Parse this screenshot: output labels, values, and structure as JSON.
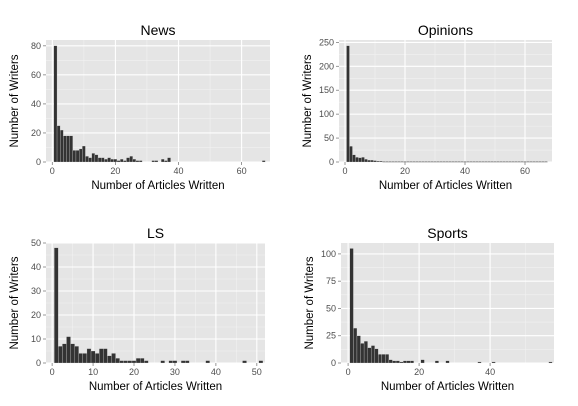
{
  "chart_data": [
    {
      "type": "bar",
      "title": "News",
      "xlabel": "Number of Articles Written",
      "ylabel": "Number of Writers",
      "xlim": [
        -2,
        69
      ],
      "ylim": [
        0,
        84
      ],
      "xticks": [
        0,
        20,
        40,
        60
      ],
      "yticks": [
        0,
        20,
        40,
        60,
        80
      ],
      "grid": true,
      "bin_width": 1,
      "x": [
        1,
        2,
        3,
        4,
        5,
        6,
        7,
        8,
        9,
        10,
        11,
        12,
        13,
        14,
        15,
        16,
        17,
        18,
        19,
        20,
        21,
        22,
        23,
        24,
        25,
        26,
        27,
        28,
        29,
        30,
        31,
        32,
        33,
        34,
        35,
        36,
        37,
        38,
        39,
        40,
        41,
        42,
        43,
        44,
        45,
        46,
        47,
        48,
        49,
        50,
        51,
        52,
        53,
        54,
        55,
        56,
        57,
        58,
        59,
        60,
        61,
        62,
        63,
        64,
        65,
        66,
        67
      ],
      "values": [
        80,
        25,
        22,
        18,
        18,
        18,
        8,
        8,
        9,
        11,
        4,
        3,
        6,
        5,
        3,
        3,
        2,
        3,
        2,
        2,
        1,
        2,
        1,
        3,
        4,
        2,
        1,
        1,
        0,
        0,
        0,
        1,
        1,
        0,
        2,
        1,
        3,
        0,
        0,
        0,
        0,
        0,
        0,
        0,
        0,
        0,
        0,
        0,
        0,
        0,
        0,
        0,
        0,
        0,
        0,
        0,
        0,
        0,
        0,
        0,
        0,
        0,
        0,
        0,
        0,
        0,
        1
      ]
    },
    {
      "type": "bar",
      "title": "Opinions",
      "xlabel": "Number of Articles Written",
      "ylabel": "Number of Writers",
      "xlim": [
        -2,
        69
      ],
      "ylim": [
        0,
        255
      ],
      "xticks": [
        0,
        20,
        40,
        60
      ],
      "yticks": [
        0,
        50,
        100,
        150,
        200,
        250
      ],
      "grid": true,
      "bin_width": 1,
      "x": [
        1,
        2,
        3,
        4,
        5,
        6,
        7,
        8,
        9,
        10,
        11,
        12,
        13,
        14,
        15,
        16,
        17,
        18,
        19,
        20,
        21,
        22,
        23,
        24,
        25,
        26,
        27,
        28,
        29,
        30,
        31,
        32,
        33,
        34,
        35,
        36,
        37,
        38,
        39,
        40,
        41,
        42,
        43,
        44,
        45,
        46,
        47,
        48,
        49,
        50,
        51,
        52,
        53,
        54,
        55,
        56,
        57,
        58,
        59,
        60,
        61,
        62,
        63,
        64,
        65,
        66,
        67
      ],
      "values": [
        243,
        33,
        15,
        10,
        9,
        10,
        6,
        4,
        4,
        3,
        2,
        2,
        1,
        1,
        1,
        1,
        1,
        1,
        1,
        1,
        1,
        1,
        1,
        1,
        1,
        1,
        1,
        1,
        1,
        1,
        1,
        1,
        1,
        1,
        1,
        1,
        1,
        1,
        1,
        1,
        1,
        1,
        1,
        1,
        1,
        1,
        1,
        1,
        1,
        1,
        1,
        1,
        1,
        1,
        1,
        1,
        1,
        1,
        1,
        1,
        1,
        1,
        1,
        1,
        1,
        1,
        1
      ]
    },
    {
      "type": "bar",
      "title": "LS",
      "xlabel": "Number of Articles Written",
      "ylabel": "Number of Writers",
      "xlim": [
        -1.5,
        52
      ],
      "ylim": [
        0,
        50
      ],
      "xticks": [
        0,
        10,
        20,
        30,
        40,
        50
      ],
      "yticks": [
        0,
        10,
        20,
        30,
        40,
        50
      ],
      "grid": true,
      "bin_width": 1,
      "x": [
        1,
        2,
        3,
        4,
        5,
        6,
        7,
        8,
        9,
        10,
        11,
        12,
        13,
        14,
        15,
        16,
        17,
        18,
        19,
        20,
        21,
        22,
        23,
        24,
        25,
        26,
        27,
        28,
        29,
        30,
        31,
        32,
        33,
        34,
        35,
        36,
        37,
        38,
        39,
        40,
        41,
        42,
        43,
        44,
        45,
        46,
        47,
        48,
        49,
        50,
        51
      ],
      "values": [
        48,
        7,
        8,
        11,
        8,
        7,
        4,
        4,
        6,
        5,
        4,
        6,
        6,
        3,
        4,
        2,
        1,
        1,
        1,
        1,
        2,
        2,
        1,
        0,
        0,
        0,
        1,
        0,
        1,
        1,
        0,
        1,
        1,
        0,
        0,
        0,
        0,
        1,
        0,
        0,
        0,
        0,
        0,
        0,
        0,
        0,
        1,
        0,
        0,
        0,
        1
      ]
    },
    {
      "type": "bar",
      "title": "Sports",
      "xlabel": "Number of Articles Written",
      "ylabel": "Number of Writers",
      "xlim": [
        -2,
        58
      ],
      "ylim": [
        0,
        110
      ],
      "xticks": [
        0,
        20,
        40
      ],
      "yticks": [
        0,
        25,
        50,
        75,
        100
      ],
      "grid": true,
      "bin_width": 1,
      "x": [
        1,
        2,
        3,
        4,
        5,
        6,
        7,
        8,
        9,
        10,
        11,
        12,
        13,
        14,
        15,
        16,
        17,
        18,
        19,
        20,
        21,
        22,
        23,
        24,
        25,
        26,
        27,
        28,
        29,
        30,
        31,
        32,
        33,
        34,
        35,
        36,
        37,
        38,
        39,
        40,
        41,
        42,
        43,
        44,
        45,
        46,
        47,
        48,
        49,
        50,
        51,
        52,
        53,
        54,
        55,
        56,
        57
      ],
      "values": [
        105,
        32,
        25,
        18,
        20,
        14,
        16,
        13,
        8,
        8,
        8,
        3,
        2,
        2,
        1,
        2,
        2,
        2,
        0,
        0,
        3,
        0,
        0,
        0,
        2,
        0,
        0,
        2,
        0,
        0,
        0,
        0,
        0,
        0,
        0,
        0,
        1,
        0,
        0,
        0,
        1,
        0,
        0,
        0,
        0,
        0,
        0,
        0,
        0,
        0,
        0,
        0,
        0,
        0,
        0,
        0,
        1
      ]
    }
  ]
}
